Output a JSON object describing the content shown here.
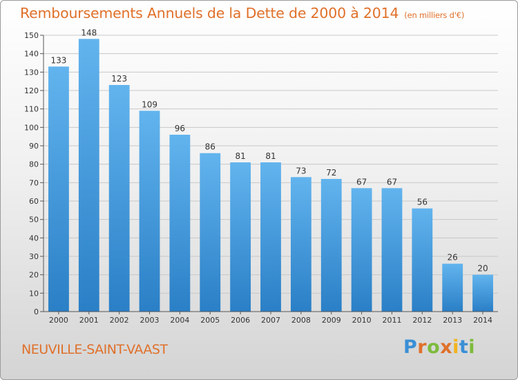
{
  "header": {
    "title": "Remboursements Annuels de la Dette de 2000 à 2014",
    "unit": "(en milliers d'€)"
  },
  "footer": {
    "commune": "NEUVILLE-SAINT-VAAST",
    "logo": "Proxiti"
  },
  "colors": {
    "title": "#e0702a",
    "bar_top": "#62b4ee",
    "bar_bottom": "#2a7fc6"
  },
  "chart_data": {
    "type": "bar",
    "title": "Remboursements Annuels de la Dette de 2000 à 2014",
    "xlabel": "",
    "ylabel": "",
    "categories": [
      "2000",
      "2001",
      "2002",
      "2003",
      "2004",
      "2005",
      "2006",
      "2007",
      "2008",
      "2009",
      "2010",
      "2011",
      "2012",
      "2013",
      "2014"
    ],
    "values": [
      133,
      148,
      123,
      109,
      96,
      86,
      81,
      81,
      73,
      72,
      67,
      67,
      56,
      26,
      20
    ],
    "ylim": [
      0,
      150
    ],
    "yticks": [
      0,
      10,
      20,
      30,
      40,
      50,
      60,
      70,
      80,
      90,
      100,
      110,
      120,
      130,
      140,
      150
    ],
    "grid": true,
    "legend": "none"
  }
}
